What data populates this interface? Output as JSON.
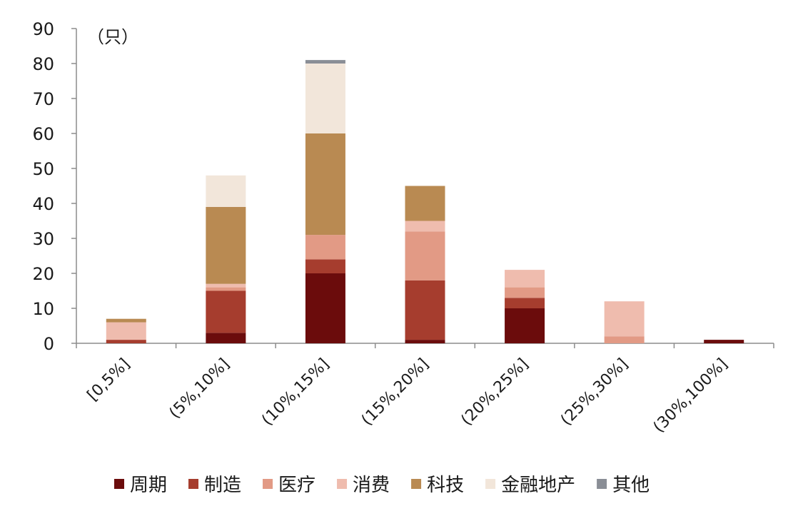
{
  "chart_data": {
    "type": "bar",
    "stacked": true,
    "unit_label": "（只）",
    "categories": [
      "[0,5%]",
      "(5%,10%]",
      "(10%,15%]",
      "(15%,20%]",
      "(20%,25%]",
      "(25%,30%]",
      "(30%,100%]"
    ],
    "ylim": [
      0,
      90
    ],
    "yticks": [
      0,
      10,
      20,
      30,
      40,
      50,
      60,
      70,
      80,
      90
    ],
    "grid": false,
    "legend_position": "bottom",
    "series": [
      {
        "name": "周期",
        "color": "#6b0c0c",
        "values": [
          0,
          3,
          20,
          1,
          10,
          0,
          1
        ]
      },
      {
        "name": "制造",
        "color": "#a63d2e",
        "values": [
          1,
          12,
          4,
          17,
          3,
          0,
          0
        ]
      },
      {
        "name": "医疗",
        "color": "#e29a85",
        "values": [
          0,
          1,
          7,
          14,
          3,
          2,
          0
        ]
      },
      {
        "name": "消费",
        "color": "#efbcae",
        "values": [
          5,
          1,
          0,
          3,
          5,
          10,
          0
        ]
      },
      {
        "name": "科技",
        "color": "#b98a52",
        "values": [
          1,
          22,
          29,
          10,
          0,
          0,
          0
        ]
      },
      {
        "name": "金融地产",
        "color": "#f2e6da",
        "values": [
          0,
          9,
          20,
          0,
          0,
          0,
          0
        ]
      },
      {
        "name": "其他",
        "color": "#8a8e96",
        "values": [
          0,
          0,
          1,
          0,
          0,
          0,
          0
        ]
      }
    ]
  }
}
